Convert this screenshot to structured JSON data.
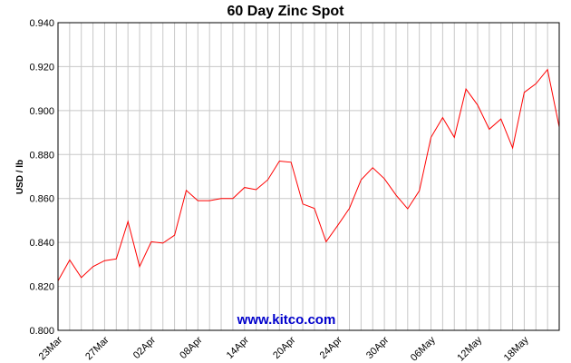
{
  "chart_data": {
    "type": "line",
    "title": "60 Day Zinc Spot",
    "ylabel": "USD / lb",
    "xlabel": "",
    "ylim": [
      0.8,
      0.94
    ],
    "yticks": [
      "0.800",
      "0.820",
      "0.840",
      "0.860",
      "0.880",
      "0.900",
      "0.920",
      "0.940"
    ],
    "xticks": [
      "23Mar",
      "27Mar",
      "02Apr",
      "08Apr",
      "14Apr",
      "20Apr",
      "24Apr",
      "30Apr",
      "06May",
      "12May",
      "18May"
    ],
    "grid": true,
    "series": [
      {
        "color": "#ff0000",
        "values": [
          0.8225,
          0.832,
          0.824,
          0.829,
          0.8317,
          0.8325,
          0.8495,
          0.829,
          0.8403,
          0.8397,
          0.8433,
          0.8637,
          0.859,
          0.859,
          0.86,
          0.86,
          0.865,
          0.864,
          0.8685,
          0.877,
          0.8765,
          0.8575,
          0.8555,
          0.8403,
          0.8478,
          0.8555,
          0.8685,
          0.874,
          0.869,
          0.8615,
          0.8553,
          0.8635,
          0.8878,
          0.8968,
          0.8878,
          0.9098,
          0.9025,
          0.8915,
          0.8962,
          0.883,
          0.9083,
          0.9122,
          0.9187,
          0.8925
        ]
      }
    ]
  },
  "watermark": "www.kitco.com"
}
